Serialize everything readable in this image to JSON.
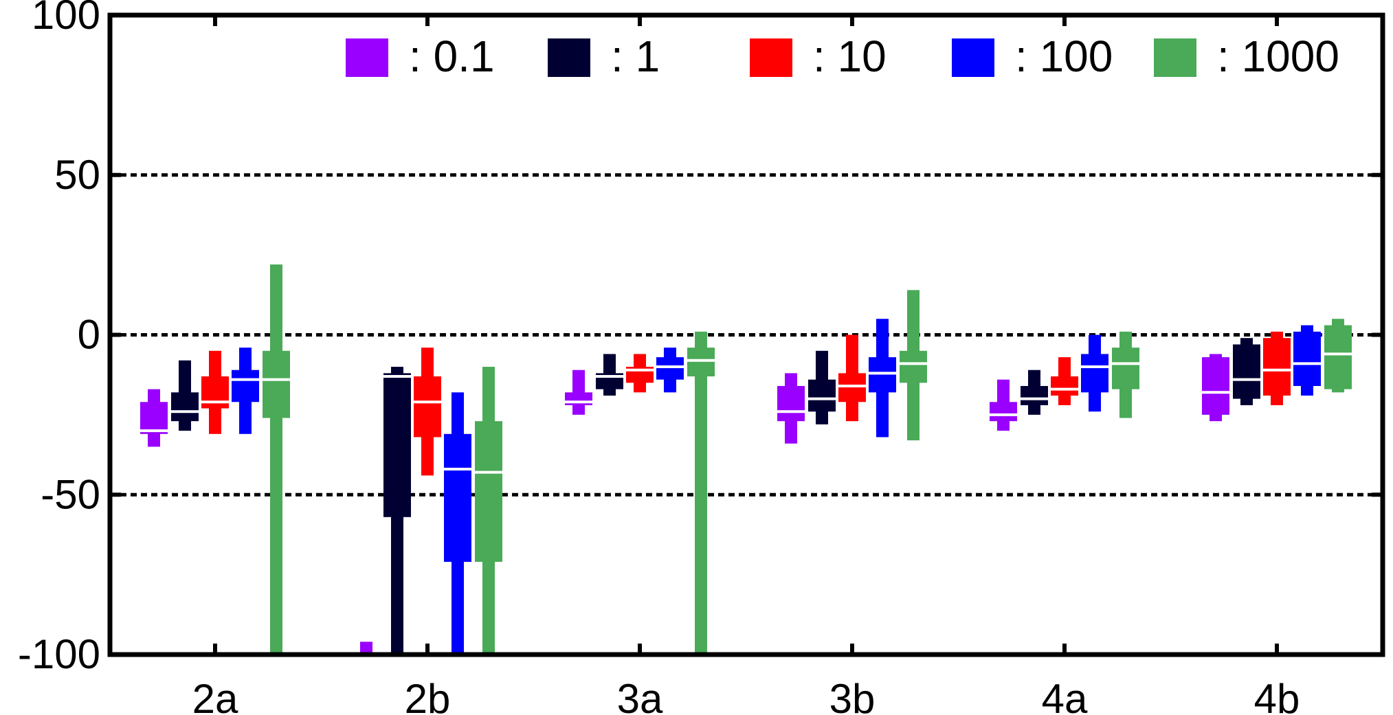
{
  "chart_data": {
    "type": "box",
    "title": "",
    "xlabel": "",
    "ylabel": "",
    "ylim": [
      -100,
      100
    ],
    "yticks": [
      -100,
      -50,
      0,
      50,
      100
    ],
    "ytick_labels": [
      "-100",
      "-50",
      "0",
      "50",
      "100"
    ],
    "categories": [
      "2a",
      "2b",
      "3a",
      "3b",
      "4a",
      "4b"
    ],
    "grid": "dashed horizontal at 50, 0, -50",
    "legend_position": "top",
    "series": [
      {
        "name": ": 0.1",
        "color": "#9900ff",
        "boxes": [
          {
            "whisker_low": -35,
            "q1": -31,
            "median": -30,
            "q3": -21,
            "whisker_high": -17
          },
          {
            "whisker_low": -100,
            "q1": -100,
            "median": -100,
            "q3": -100,
            "whisker_high": -96
          },
          {
            "whisker_low": -25,
            "q1": -22,
            "median": -21,
            "q3": -18,
            "whisker_high": -11
          },
          {
            "whisker_low": -34,
            "q1": -27,
            "median": -24,
            "q3": -16,
            "whisker_high": -12
          },
          {
            "whisker_low": -30,
            "q1": -27,
            "median": -25,
            "q3": -21,
            "whisker_high": -14
          },
          {
            "whisker_low": -27,
            "q1": -25,
            "median": -18,
            "q3": -7,
            "whisker_high": -6
          }
        ]
      },
      {
        "name": ": 1",
        "color": "#000033",
        "boxes": [
          {
            "whisker_low": -30,
            "q1": -27,
            "median": -24,
            "q3": -18,
            "whisker_high": -8
          },
          {
            "whisker_low": -100,
            "q1": -57,
            "median": -13,
            "q3": -12,
            "whisker_high": -10
          },
          {
            "whisker_low": -19,
            "q1": -17,
            "median": -13,
            "q3": -12,
            "whisker_high": -6
          },
          {
            "whisker_low": -28,
            "q1": -24,
            "median": -20,
            "q3": -14,
            "whisker_high": -5
          },
          {
            "whisker_low": -25,
            "q1": -22,
            "median": -20,
            "q3": -16,
            "whisker_high": -11
          },
          {
            "whisker_low": -22,
            "q1": -20,
            "median": -14,
            "q3": -3,
            "whisker_high": -1
          }
        ]
      },
      {
        "name": ": 10",
        "color": "#ff0000",
        "boxes": [
          {
            "whisker_low": -31,
            "q1": -23,
            "median": -21,
            "q3": -13,
            "whisker_high": -5
          },
          {
            "whisker_low": -44,
            "q1": -32,
            "median": -21,
            "q3": -13,
            "whisker_high": -4
          },
          {
            "whisker_low": -18,
            "q1": -15,
            "median": -11,
            "q3": -10,
            "whisker_high": -6
          },
          {
            "whisker_low": -27,
            "q1": -21,
            "median": -16,
            "q3": -12,
            "whisker_high": 0
          },
          {
            "whisker_low": -22,
            "q1": -19,
            "median": -17,
            "q3": -13,
            "whisker_high": -7
          },
          {
            "whisker_low": -22,
            "q1": -19,
            "median": -11,
            "q3": -1,
            "whisker_high": 1
          }
        ]
      },
      {
        "name": ": 100",
        "color": "#0000ff",
        "boxes": [
          {
            "whisker_low": -31,
            "q1": -21,
            "median": -14,
            "q3": -11,
            "whisker_high": -4
          },
          {
            "whisker_low": -100,
            "q1": -71,
            "median": -42,
            "q3": -31,
            "whisker_high": -18
          },
          {
            "whisker_low": -18,
            "q1": -14,
            "median": -10,
            "q3": -7,
            "whisker_high": -4
          },
          {
            "whisker_low": -32,
            "q1": -18,
            "median": -12,
            "q3": -7,
            "whisker_high": 5
          },
          {
            "whisker_low": -24,
            "q1": -18,
            "median": -10,
            "q3": -6,
            "whisker_high": 0
          },
          {
            "whisker_low": -19,
            "q1": -16,
            "median": -9,
            "q3": 1,
            "whisker_high": 3
          }
        ]
      },
      {
        "name": ": 1000",
        "color": "#4aaa57",
        "boxes": [
          {
            "whisker_low": -100,
            "q1": -26,
            "median": -14,
            "q3": -5,
            "whisker_high": 22
          },
          {
            "whisker_low": -100,
            "q1": -71,
            "median": -43,
            "q3": -27,
            "whisker_high": -10
          },
          {
            "whisker_low": -100,
            "q1": -13,
            "median": -8,
            "q3": -4,
            "whisker_high": 1
          },
          {
            "whisker_low": -33,
            "q1": -15,
            "median": -9,
            "q3": -5,
            "whisker_high": 14
          },
          {
            "whisker_low": -26,
            "q1": -17,
            "median": -9,
            "q3": -4,
            "whisker_high": 1
          },
          {
            "whisker_low": -18,
            "q1": -17,
            "median": -6,
            "q3": 3,
            "whisker_high": 5
          }
        ]
      }
    ]
  }
}
